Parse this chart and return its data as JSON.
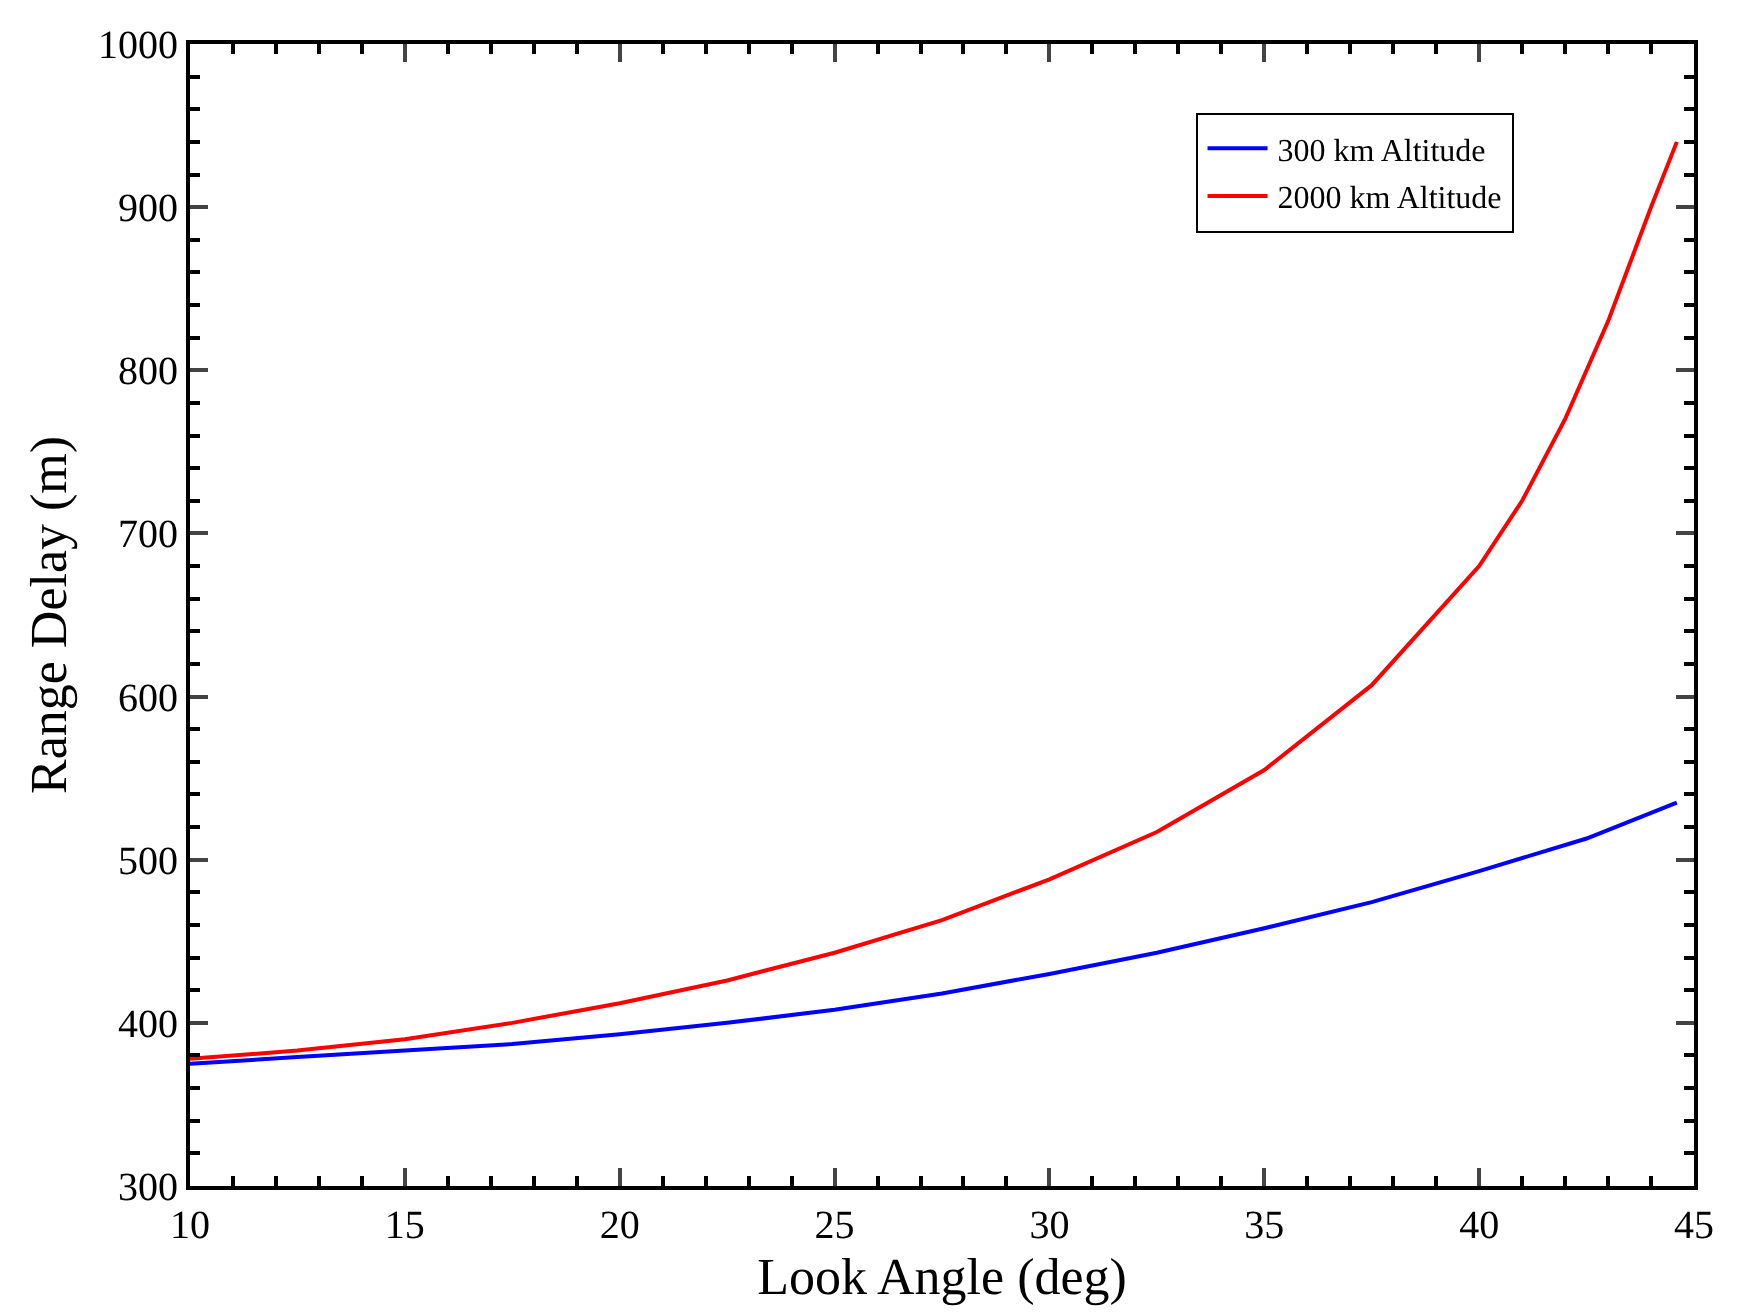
{
  "chart_data": {
    "type": "line",
    "xlabel": "Look Angle (deg)",
    "ylabel": "Range Delay (m)",
    "xlim": [
      10,
      45
    ],
    "xticks": [
      10,
      15,
      20,
      25,
      30,
      35,
      40,
      45
    ],
    "ylim": [
      300,
      1000
    ],
    "yticks": [
      300,
      400,
      500,
      600,
      700,
      800,
      900,
      1000
    ],
    "legend": "top right",
    "marker": "none",
    "line_style": "solid",
    "series": [
      {
        "name": "300 km Altitude",
        "color": "#0000ff",
        "x": [
          10,
          12.5,
          15,
          17.5,
          20,
          22.5,
          25,
          27.5,
          30,
          32.5,
          35,
          37.5,
          40,
          42.5,
          44.6
        ],
        "values": [
          375,
          379,
          383,
          387,
          393,
          400,
          408,
          418,
          430,
          443,
          458,
          474,
          493,
          513,
          535
        ]
      },
      {
        "name": "2000 km Altitude",
        "color": "#ff0000",
        "x": [
          10,
          12.5,
          15,
          17.5,
          20,
          22.5,
          25,
          27.5,
          30,
          32.5,
          35,
          37.5,
          40,
          41,
          42,
          43,
          44,
          44.6
        ],
        "values": [
          378,
          383,
          390,
          400,
          412,
          426,
          443,
          463,
          488,
          517,
          555,
          607,
          680,
          720,
          770,
          830,
          900,
          940
        ]
      }
    ]
  }
}
